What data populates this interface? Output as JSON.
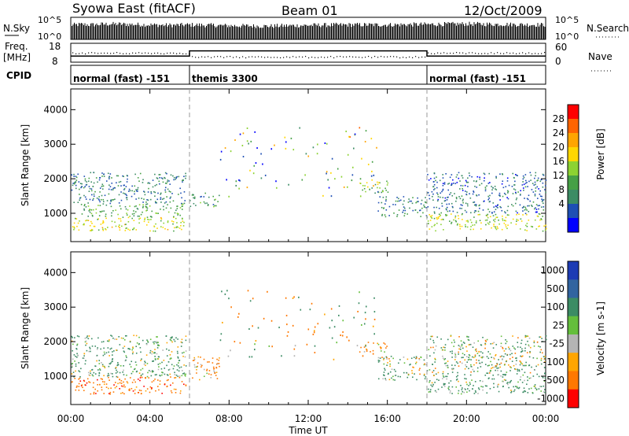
{
  "header": {
    "station": "Syowa East (fitACF)",
    "beam": "Beam 01",
    "date": "12/Oct/2009"
  },
  "nsky": {
    "label": "N.Sky",
    "ticks": [
      "10^5",
      "10^0"
    ],
    "right_label": "N.Search",
    "right_ticks": [
      "10^5",
      "10^0"
    ]
  },
  "freq": {
    "label_line1": "Freq.",
    "label_line2": "[MHz]",
    "ticks": [
      "18",
      "8"
    ],
    "right_label": "Nave",
    "right_ticks": [
      "60",
      "0"
    ]
  },
  "cpid": {
    "label": "CPID",
    "segments": [
      {
        "name": "normal (fast) -151",
        "start": 0,
        "end": 6
      },
      {
        "name": "themis 3300",
        "start": 6,
        "end": 18
      },
      {
        "name": "normal (fast) -151",
        "start": 18,
        "end": 24
      }
    ]
  },
  "x_axis": {
    "label": "Time UT",
    "ticks": [
      "00:00",
      "04:00",
      "08:00",
      "12:00",
      "16:00",
      "20:00",
      "00:00"
    ],
    "tick_hours": [
      0,
      4,
      8,
      12,
      16,
      20,
      24
    ],
    "range_hours": [
      0,
      24
    ]
  },
  "power_panel": {
    "ylabel": "Slant Range [km]",
    "yticks": [
      1000,
      2000,
      3000,
      4000
    ],
    "ylim": [
      180,
      4600
    ],
    "colorbar": {
      "label": "Power [dB]",
      "ticks": [
        "4",
        "8",
        "12",
        "16",
        "20",
        "24",
        "28"
      ]
    }
  },
  "velocity_panel": {
    "ylabel": "Slant Range [km]",
    "yticks": [
      1000,
      2000,
      3000,
      4000
    ],
    "ylim": [
      180,
      4600
    ],
    "colorbar": {
      "label": "Velocity [m s-1]",
      "ticks": [
        "1000",
        "500",
        "100",
        "25",
        "-25",
        "-100",
        "-500",
        "-1000"
      ]
    }
  },
  "colors": {
    "power_scale": [
      "#0000ff",
      "#1e4fb4",
      "#3c8c64",
      "#46a046",
      "#8cd232",
      "#ffd700",
      "#ffa500",
      "#ff6400",
      "#ff0000"
    ],
    "velocity_scale": [
      "#1e3cb4",
      "#3264a0",
      "#3c8c64",
      "#64be3c",
      "#b4b4b4",
      "#ffa500",
      "#ff7800",
      "#ff0000"
    ],
    "ground_scatter": "#b4b4b4"
  },
  "chart_data": [
    {
      "type": "area",
      "title": "N.Sky / N.Search",
      "x_hours": [
        0,
        0.5,
        1,
        2,
        3,
        4,
        5,
        6,
        8,
        10,
        12,
        14,
        16,
        18,
        20,
        22,
        24
      ],
      "nsky_log10": [
        3.2,
        3.4,
        3.3,
        3.5,
        3.4,
        3.3,
        3.2,
        3.3,
        3.1,
        3.0,
        3.2,
        3.3,
        3.3,
        3.4,
        3.5,
        3.4,
        3.3
      ]
    },
    {
      "type": "line",
      "title": "Freq / Nave",
      "x_hours": [
        0,
        6,
        6,
        18,
        18,
        24
      ],
      "freq_mhz": [
        11.2,
        11.2,
        14.0,
        14.0,
        11.2,
        11.2
      ]
    },
    {
      "type": "heatmap",
      "title": "Power",
      "units": "dB",
      "x_hours_range": [
        0,
        24
      ],
      "y_range_km": [
        180,
        4600
      ],
      "scatter_bands": [
        {
          "t0": 0.0,
          "t1": 5.8,
          "r0": 500,
          "r1": 900,
          "value": 20
        },
        {
          "t0": 0.5,
          "t1": 5.8,
          "r0": 900,
          "r1": 1300,
          "value": 14
        },
        {
          "t0": 0.0,
          "t1": 5.8,
          "r0": 1300,
          "r1": 2200,
          "value": 9
        },
        {
          "t0": 6.0,
          "t1": 7.5,
          "r0": 1200,
          "r1": 1600,
          "value": 12
        },
        {
          "t0": 14.5,
          "t1": 16.0,
          "r0": 1600,
          "r1": 2000,
          "value": 16
        },
        {
          "t0": 15.5,
          "t1": 18.0,
          "r0": 900,
          "r1": 1500,
          "value": 10
        },
        {
          "t0": 18.0,
          "t1": 24.0,
          "r0": 500,
          "r1": 1000,
          "value": 18
        },
        {
          "t0": 18.0,
          "t1": 24.0,
          "r0": 1000,
          "r1": 2200,
          "value": 8
        }
      ]
    },
    {
      "type": "heatmap",
      "title": "Velocity",
      "units": "m s-1",
      "x_hours_range": [
        0,
        24
      ],
      "y_range_km": [
        180,
        4600
      ],
      "scatter_bands": [
        {
          "t0": 0.0,
          "t1": 5.8,
          "r0": 500,
          "r1": 1000,
          "value": -300
        },
        {
          "t0": 0.0,
          "t1": 5.8,
          "r0": 1000,
          "r1": 2200,
          "value": 150
        },
        {
          "t0": 6.0,
          "t1": 7.5,
          "r0": 900,
          "r1": 1600,
          "value": -200
        },
        {
          "t0": 14.5,
          "t1": 16.0,
          "r0": 1700,
          "r1": 2000,
          "value": -200
        },
        {
          "t0": 15.5,
          "t1": 18.0,
          "r0": 900,
          "r1": 1600,
          "value": 120
        },
        {
          "t0": 18.0,
          "t1": 24.0,
          "r0": 500,
          "r1": 1100,
          "value": 200
        },
        {
          "t0": 18.0,
          "t1": 24.0,
          "r0": 1100,
          "r1": 2200,
          "value": 80
        }
      ]
    }
  ]
}
